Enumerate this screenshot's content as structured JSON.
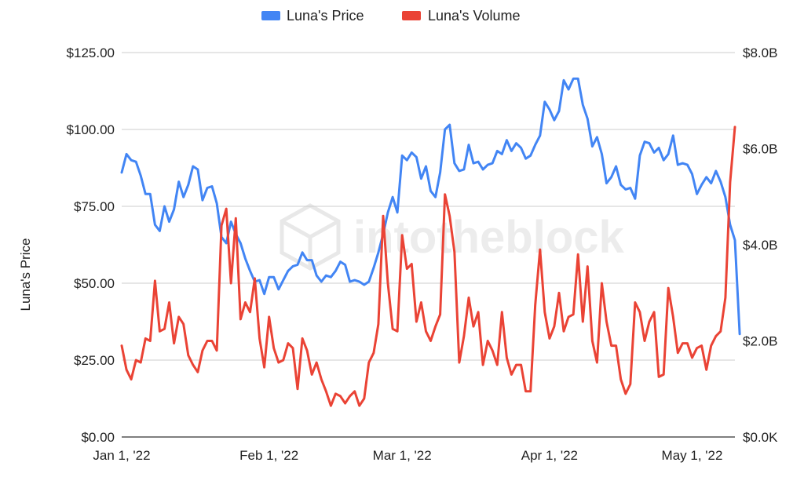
{
  "chart_data": {
    "type": "line",
    "ylabel_left": "Luna's Price",
    "ylabel_right": "",
    "xlabel": "",
    "watermark": "intotheblock",
    "legend_position": "top",
    "grid": true,
    "x_range": [
      "2022-01-01",
      "2022-05-10"
    ],
    "x_ticks": [
      {
        "date": "2022-01-01",
        "label": "Jan 1,  '22"
      },
      {
        "date": "2022-02-01",
        "label": "Feb 1,  '22"
      },
      {
        "date": "2022-03-01",
        "label": "Mar 1,  '22"
      },
      {
        "date": "2022-04-01",
        "label": "Apr 1,  '22"
      },
      {
        "date": "2022-05-01",
        "label": "May 1,  '22"
      }
    ],
    "y_left": {
      "min": 0,
      "max": 125,
      "ticks": [
        0,
        25,
        50,
        75,
        100,
        125
      ],
      "tick_labels": [
        "$0.00",
        "$25.00",
        "$50.00",
        "$75.00",
        "$100.00",
        "$125.00"
      ]
    },
    "y_right": {
      "min": 0,
      "max": 8,
      "ticks": [
        0,
        2,
        4,
        6,
        8
      ],
      "tick_labels": [
        "$0.0K",
        "$2.0B",
        "$4.0B",
        "$6.0B",
        "$8.0B"
      ]
    },
    "series": [
      {
        "name": "Luna's Price",
        "axis": "left",
        "color": "#4285f4",
        "points": [
          [
            "2022-01-01",
            86
          ],
          [
            "2022-01-02",
            92
          ],
          [
            "2022-01-03",
            90
          ],
          [
            "2022-01-04",
            89.5
          ],
          [
            "2022-01-05",
            85
          ],
          [
            "2022-01-06",
            79
          ],
          [
            "2022-01-07",
            79
          ],
          [
            "2022-01-08",
            69
          ],
          [
            "2022-01-09",
            67
          ],
          [
            "2022-01-10",
            75
          ],
          [
            "2022-01-11",
            70
          ],
          [
            "2022-01-12",
            74
          ],
          [
            "2022-01-13",
            83
          ],
          [
            "2022-01-14",
            78
          ],
          [
            "2022-01-15",
            82
          ],
          [
            "2022-01-16",
            88
          ],
          [
            "2022-01-17",
            87
          ],
          [
            "2022-01-18",
            77
          ],
          [
            "2022-01-19",
            81
          ],
          [
            "2022-01-20",
            81.5
          ],
          [
            "2022-01-21",
            76
          ],
          [
            "2022-01-22",
            65
          ],
          [
            "2022-01-23",
            63
          ],
          [
            "2022-01-24",
            70
          ],
          [
            "2022-01-25",
            66
          ],
          [
            "2022-01-26",
            63
          ],
          [
            "2022-01-27",
            58
          ],
          [
            "2022-01-28",
            54
          ],
          [
            "2022-01-29",
            50.5
          ],
          [
            "2022-01-30",
            51
          ],
          [
            "2022-01-31",
            46.5
          ],
          [
            "2022-02-01",
            52
          ],
          [
            "2022-02-02",
            52
          ],
          [
            "2022-02-03",
            48
          ],
          [
            "2022-02-04",
            51
          ],
          [
            "2022-02-05",
            54
          ],
          [
            "2022-02-06",
            55.5
          ],
          [
            "2022-02-07",
            56
          ],
          [
            "2022-02-08",
            60
          ],
          [
            "2022-02-09",
            57.5
          ],
          [
            "2022-02-10",
            57.5
          ],
          [
            "2022-02-11",
            52.5
          ],
          [
            "2022-02-12",
            50.5
          ],
          [
            "2022-02-13",
            52.5
          ],
          [
            "2022-02-14",
            52
          ],
          [
            "2022-02-15",
            54
          ],
          [
            "2022-02-16",
            57
          ],
          [
            "2022-02-17",
            56
          ],
          [
            "2022-02-18",
            50.5
          ],
          [
            "2022-02-19",
            51
          ],
          [
            "2022-02-20",
            50.5
          ],
          [
            "2022-02-21",
            49.5
          ],
          [
            "2022-02-22",
            50.5
          ],
          [
            "2022-02-23",
            55
          ],
          [
            "2022-02-24",
            60
          ],
          [
            "2022-02-25",
            66
          ],
          [
            "2022-02-26",
            73
          ],
          [
            "2022-02-27",
            78
          ],
          [
            "2022-02-28",
            73
          ],
          [
            "2022-03-01",
            91.5
          ],
          [
            "2022-03-02",
            90
          ],
          [
            "2022-03-03",
            92.5
          ],
          [
            "2022-03-04",
            91
          ],
          [
            "2022-03-05",
            84
          ],
          [
            "2022-03-06",
            88
          ],
          [
            "2022-03-07",
            80
          ],
          [
            "2022-03-08",
            78
          ],
          [
            "2022-03-09",
            86
          ],
          [
            "2022-03-10",
            100
          ],
          [
            "2022-03-11",
            101.5
          ],
          [
            "2022-03-12",
            89
          ],
          [
            "2022-03-13",
            86.5
          ],
          [
            "2022-03-14",
            87
          ],
          [
            "2022-03-15",
            95
          ],
          [
            "2022-03-16",
            89
          ],
          [
            "2022-03-17",
            89.5
          ],
          [
            "2022-03-18",
            87
          ],
          [
            "2022-03-19",
            88.5
          ],
          [
            "2022-03-20",
            89
          ],
          [
            "2022-03-21",
            93
          ],
          [
            "2022-03-22",
            92
          ],
          [
            "2022-03-23",
            96.5
          ],
          [
            "2022-03-24",
            93
          ],
          [
            "2022-03-25",
            95.5
          ],
          [
            "2022-03-26",
            94
          ],
          [
            "2022-03-27",
            90.5
          ],
          [
            "2022-03-28",
            91.5
          ],
          [
            "2022-03-29",
            95
          ],
          [
            "2022-03-30",
            98
          ],
          [
            "2022-03-31",
            109
          ],
          [
            "2022-04-01",
            106.5
          ],
          [
            "2022-04-02",
            103
          ],
          [
            "2022-04-03",
            106
          ],
          [
            "2022-04-04",
            116
          ],
          [
            "2022-04-05",
            113
          ],
          [
            "2022-04-06",
            116.5
          ],
          [
            "2022-04-07",
            116.5
          ],
          [
            "2022-04-08",
            108
          ],
          [
            "2022-04-09",
            103.5
          ],
          [
            "2022-04-10",
            94.5
          ],
          [
            "2022-04-11",
            97.5
          ],
          [
            "2022-04-12",
            92
          ],
          [
            "2022-04-13",
            82.5
          ],
          [
            "2022-04-14",
            84.5
          ],
          [
            "2022-04-15",
            88
          ],
          [
            "2022-04-16",
            82
          ],
          [
            "2022-04-17",
            80.5
          ],
          [
            "2022-04-18",
            81
          ],
          [
            "2022-04-19",
            77.5
          ],
          [
            "2022-04-20",
            91.5
          ],
          [
            "2022-04-21",
            96
          ],
          [
            "2022-04-22",
            95.5
          ],
          [
            "2022-04-23",
            92.5
          ],
          [
            "2022-04-24",
            94
          ],
          [
            "2022-04-25",
            90
          ],
          [
            "2022-04-26",
            92
          ],
          [
            "2022-04-27",
            98
          ],
          [
            "2022-04-28",
            88.5
          ],
          [
            "2022-04-29",
            89
          ],
          [
            "2022-04-30",
            88.5
          ],
          [
            "2022-05-01",
            85.5
          ],
          [
            "2022-05-02",
            79
          ],
          [
            "2022-05-03",
            82
          ],
          [
            "2022-05-04",
            84.5
          ],
          [
            "2022-05-05",
            82.5
          ],
          [
            "2022-05-06",
            86.5
          ],
          [
            "2022-05-07",
            83
          ],
          [
            "2022-05-08",
            78
          ],
          [
            "2022-05-09",
            69
          ],
          [
            "2022-05-10",
            64
          ],
          [
            "2022-05-11",
            33.5
          ]
        ]
      },
      {
        "name": "Luna's Volume",
        "axis": "right",
        "color": "#ea4335",
        "points": [
          [
            "2022-01-01",
            1.9
          ],
          [
            "2022-01-02",
            1.4
          ],
          [
            "2022-01-03",
            1.2
          ],
          [
            "2022-01-04",
            1.6
          ],
          [
            "2022-01-05",
            1.55
          ],
          [
            "2022-01-06",
            2.05
          ],
          [
            "2022-01-07",
            2.0
          ],
          [
            "2022-01-08",
            3.25
          ],
          [
            "2022-01-09",
            2.2
          ],
          [
            "2022-01-10",
            2.25
          ],
          [
            "2022-01-11",
            2.8
          ],
          [
            "2022-01-12",
            1.95
          ],
          [
            "2022-01-13",
            2.5
          ],
          [
            "2022-01-14",
            2.35
          ],
          [
            "2022-01-15",
            1.7
          ],
          [
            "2022-01-16",
            1.5
          ],
          [
            "2022-01-17",
            1.35
          ],
          [
            "2022-01-18",
            1.8
          ],
          [
            "2022-01-19",
            2.0
          ],
          [
            "2022-01-20",
            2.0
          ],
          [
            "2022-01-21",
            1.8
          ],
          [
            "2022-01-22",
            4.4
          ],
          [
            "2022-01-23",
            4.75
          ],
          [
            "2022-01-24",
            3.2
          ],
          [
            "2022-01-25",
            4.55
          ],
          [
            "2022-01-26",
            2.45
          ],
          [
            "2022-01-27",
            2.8
          ],
          [
            "2022-01-28",
            2.6
          ],
          [
            "2022-01-29",
            3.3
          ],
          [
            "2022-01-30",
            2.05
          ],
          [
            "2022-01-31",
            1.45
          ],
          [
            "2022-02-01",
            2.5
          ],
          [
            "2022-02-02",
            1.85
          ],
          [
            "2022-02-03",
            1.55
          ],
          [
            "2022-02-04",
            1.6
          ],
          [
            "2022-02-05",
            1.95
          ],
          [
            "2022-02-06",
            1.85
          ],
          [
            "2022-02-07",
            1.0
          ],
          [
            "2022-02-08",
            2.05
          ],
          [
            "2022-02-09",
            1.8
          ],
          [
            "2022-02-10",
            1.3
          ],
          [
            "2022-02-11",
            1.55
          ],
          [
            "2022-02-12",
            1.2
          ],
          [
            "2022-02-13",
            0.95
          ],
          [
            "2022-02-14",
            0.65
          ],
          [
            "2022-02-15",
            0.9
          ],
          [
            "2022-02-16",
            0.85
          ],
          [
            "2022-02-17",
            0.7
          ],
          [
            "2022-02-18",
            0.85
          ],
          [
            "2022-02-19",
            0.95
          ],
          [
            "2022-02-20",
            0.65
          ],
          [
            "2022-02-21",
            0.8
          ],
          [
            "2022-02-22",
            1.55
          ],
          [
            "2022-02-23",
            1.75
          ],
          [
            "2022-02-24",
            2.35
          ],
          [
            "2022-02-25",
            4.6
          ],
          [
            "2022-02-26",
            3.2
          ],
          [
            "2022-02-27",
            2.25
          ],
          [
            "2022-02-28",
            2.2
          ],
          [
            "2022-03-01",
            4.2
          ],
          [
            "2022-03-02",
            3.5
          ],
          [
            "2022-03-03",
            3.6
          ],
          [
            "2022-03-04",
            2.4
          ],
          [
            "2022-03-05",
            2.8
          ],
          [
            "2022-03-06",
            2.2
          ],
          [
            "2022-03-07",
            2.0
          ],
          [
            "2022-03-08",
            2.3
          ],
          [
            "2022-03-09",
            2.55
          ],
          [
            "2022-03-10",
            5.05
          ],
          [
            "2022-03-11",
            4.6
          ],
          [
            "2022-03-12",
            3.85
          ],
          [
            "2022-03-13",
            1.55
          ],
          [
            "2022-03-14",
            2.1
          ],
          [
            "2022-03-15",
            2.9
          ],
          [
            "2022-03-16",
            2.3
          ],
          [
            "2022-03-17",
            2.6
          ],
          [
            "2022-03-18",
            1.5
          ],
          [
            "2022-03-19",
            2.0
          ],
          [
            "2022-03-20",
            1.8
          ],
          [
            "2022-03-21",
            1.5
          ],
          [
            "2022-03-22",
            2.6
          ],
          [
            "2022-03-23",
            1.65
          ],
          [
            "2022-03-24",
            1.3
          ],
          [
            "2022-03-25",
            1.5
          ],
          [
            "2022-03-26",
            1.5
          ],
          [
            "2022-03-27",
            0.95
          ],
          [
            "2022-03-28",
            0.95
          ],
          [
            "2022-03-29",
            2.75
          ],
          [
            "2022-03-30",
            3.9
          ],
          [
            "2022-03-31",
            2.6
          ],
          [
            "2022-04-01",
            2.05
          ],
          [
            "2022-04-02",
            2.3
          ],
          [
            "2022-04-03",
            3.0
          ],
          [
            "2022-04-04",
            2.2
          ],
          [
            "2022-04-05",
            2.5
          ],
          [
            "2022-04-06",
            2.55
          ],
          [
            "2022-04-07",
            3.8
          ],
          [
            "2022-04-08",
            2.4
          ],
          [
            "2022-04-09",
            3.55
          ],
          [
            "2022-04-10",
            2.0
          ],
          [
            "2022-04-11",
            1.55
          ],
          [
            "2022-04-12",
            3.2
          ],
          [
            "2022-04-13",
            2.4
          ],
          [
            "2022-04-14",
            1.9
          ],
          [
            "2022-04-15",
            1.9
          ],
          [
            "2022-04-16",
            1.2
          ],
          [
            "2022-04-17",
            0.9
          ],
          [
            "2022-04-18",
            1.1
          ],
          [
            "2022-04-19",
            2.8
          ],
          [
            "2022-04-20",
            2.6
          ],
          [
            "2022-04-21",
            2.0
          ],
          [
            "2022-04-22",
            2.4
          ],
          [
            "2022-04-23",
            2.6
          ],
          [
            "2022-04-24",
            1.25
          ],
          [
            "2022-04-25",
            1.3
          ],
          [
            "2022-04-26",
            3.1
          ],
          [
            "2022-04-27",
            2.5
          ],
          [
            "2022-04-28",
            1.75
          ],
          [
            "2022-04-29",
            1.95
          ],
          [
            "2022-04-30",
            1.95
          ],
          [
            "2022-05-01",
            1.65
          ],
          [
            "2022-05-02",
            1.85
          ],
          [
            "2022-05-03",
            1.9
          ],
          [
            "2022-05-04",
            1.4
          ],
          [
            "2022-05-05",
            1.9
          ],
          [
            "2022-05-06",
            2.1
          ],
          [
            "2022-05-07",
            2.2
          ],
          [
            "2022-05-08",
            2.9
          ],
          [
            "2022-05-09",
            5.3
          ],
          [
            "2022-05-10",
            6.45
          ]
        ]
      }
    ]
  }
}
